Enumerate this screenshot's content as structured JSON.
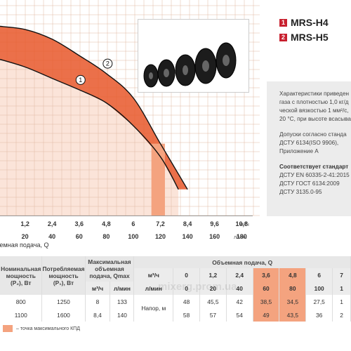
{
  "chart_data": {
    "type": "line",
    "xlabel": "Объемная подача, Q",
    "x_ticks_m3h": [
      "1,2",
      "2,4",
      "3,6",
      "4,8",
      "6",
      "7,2",
      "8,4",
      "9,6",
      "10,8"
    ],
    "x_unit_m3h": "м³/ч",
    "x_ticks_lmin": [
      "20",
      "40",
      "60",
      "80",
      "100",
      "120",
      "140",
      "160",
      "180"
    ],
    "x_unit_lmin": "л/мин",
    "xlim": [
      0,
      11.6
    ],
    "series": [
      {
        "name": "1",
        "x": [
          0,
          1.2,
          2.4,
          3.6,
          4.8,
          6,
          7.2,
          8
        ],
        "y": [
          48,
          45.5,
          42,
          38.5,
          34.5,
          27.5,
          18,
          8
        ]
      },
      {
        "name": "2",
        "x": [
          0,
          1.2,
          2.4,
          3.6,
          4.8,
          6,
          7.2,
          8.4
        ],
        "y": [
          58,
          57,
          54,
          49,
          43.5,
          36,
          22,
          8
        ]
      }
    ],
    "max_efficiency_zone": {
      "x": [
        6.8,
        7.4
      ]
    },
    "colors": {
      "zone": "#f4a37f",
      "zone_dark": "#e8572a",
      "grid": "#e0b9a4",
      "fill": "#fbe4d9"
    }
  },
  "models": [
    {
      "index": "1",
      "label": "MRS-H4"
    },
    {
      "index": "2",
      "label": "MRS-H5"
    }
  ],
  "side_text": {
    "lines1": [
      "Характеристики приведен",
      "газа с плотностью 1,0 кг/д",
      "ческой вязкостью 1 мм²/с,",
      "20 °С, при высоте всасыва"
    ],
    "lines2": [
      "Допуски согласно станда",
      "ДСТУ 6134(ISO 9906),",
      "Приложение А"
    ],
    "std_title": "Соответствует стандарт",
    "lines3": [
      "ДСТУ EN 60335-2-41:2015",
      "ДСТУ ГОСТ 6134:2009",
      "ДСТУ 3135.0-95"
    ]
  },
  "table": {
    "h_nominal": "Номинальная мощность (P₂), Вт",
    "h_consumed": "Потребляемая мощность (P₁), Вт",
    "h_max": "Максимальная объемная подача, Qmax",
    "h_flow": "Объемная подача, Q",
    "u_m3h": "м³/ч",
    "u_lmin": "л/мин",
    "flow_m3h": [
      "0",
      "1,2",
      "2,4",
      "3,6",
      "4,8",
      "6",
      "7"
    ],
    "flow_lmin": [
      "0",
      "20",
      "40",
      "60",
      "80",
      "100",
      "1"
    ],
    "head_label": "Напор, м",
    "rows": [
      {
        "p2": "800",
        "p1": "1250",
        "q_m3h": "8",
        "q_lmin": "133",
        "h": [
          "48",
          "45,5",
          "42",
          "38,5",
          "34,5",
          "27,5",
          "1"
        ]
      },
      {
        "p2": "1100",
        "p1": "1600",
        "q_m3h": "8,4",
        "q_lmin": "140",
        "h": [
          "58",
          "57",
          "54",
          "49",
          "43,5",
          "36",
          "2"
        ]
      }
    ]
  },
  "legend_note": "– точка максимального КПД",
  "watermark": "mixerg.prom.ua"
}
